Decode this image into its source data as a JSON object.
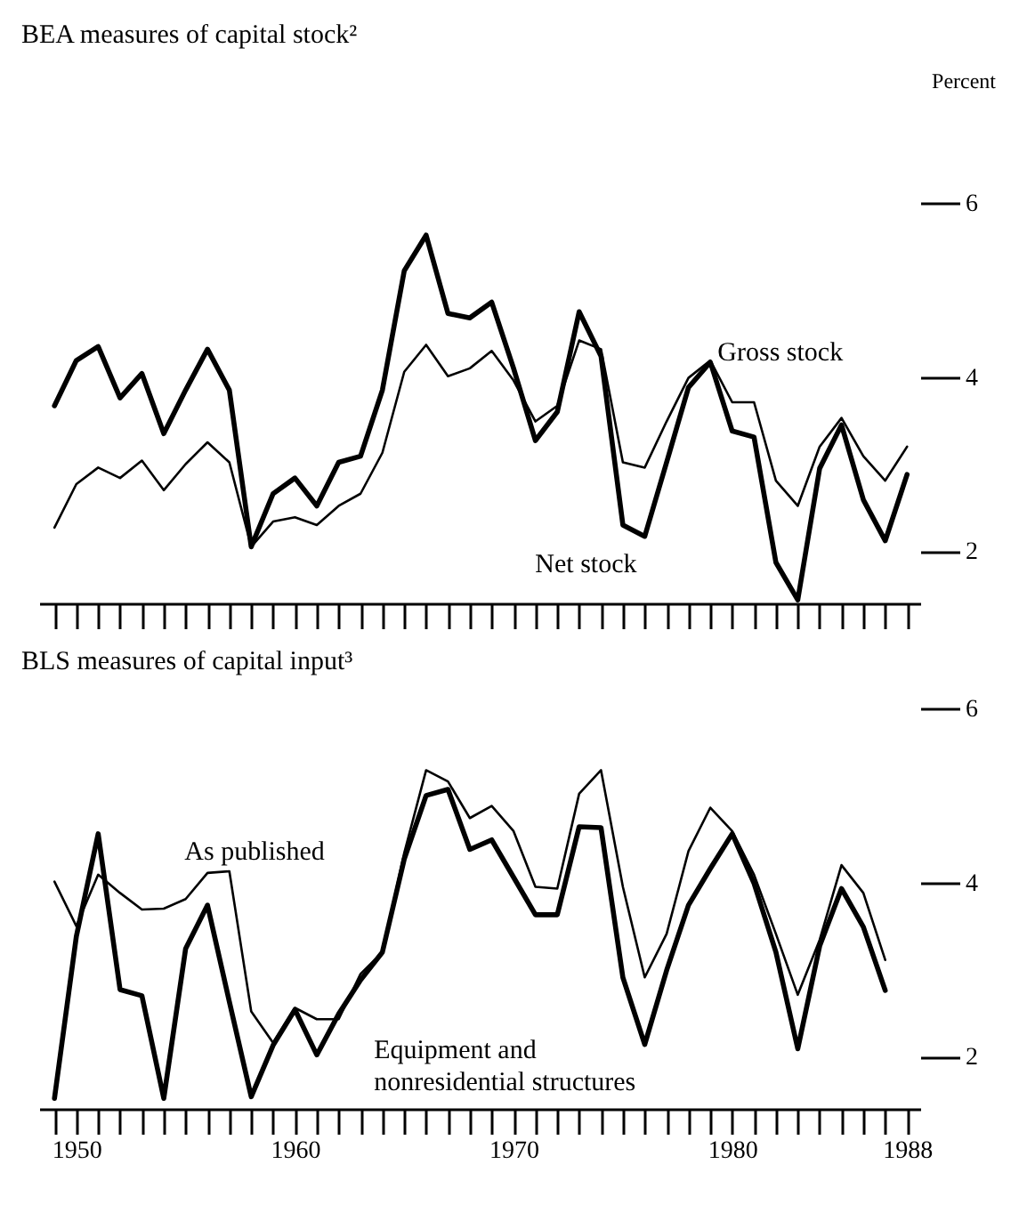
{
  "chart_data": [
    {
      "type": "line",
      "title": "BEA measures of capital stock²",
      "ylabel": "Percent",
      "x": [
        1949,
        1950,
        1951,
        1952,
        1953,
        1954,
        1955,
        1956,
        1957,
        1958,
        1959,
        1960,
        1961,
        1962,
        1963,
        1964,
        1965,
        1966,
        1967,
        1968,
        1969,
        1970,
        1971,
        1972,
        1973,
        1974,
        1975,
        1976,
        1977,
        1978,
        1979,
        1980,
        1981,
        1982,
        1983,
        1984,
        1985,
        1986,
        1987,
        1988
      ],
      "series": [
        {
          "name": "Gross stock",
          "color": "#000000",
          "values": [
            2.27,
            2.77,
            2.96,
            2.84,
            3.04,
            2.7,
            3.0,
            3.25,
            3.02,
            2.05,
            2.34,
            2.39,
            2.3,
            2.52,
            2.66,
            3.13,
            4.06,
            4.37,
            4.01,
            4.1,
            4.3,
            3.96,
            3.49,
            3.67,
            4.42,
            4.32,
            3.02,
            2.96,
            3.49,
            3.99,
            4.19,
            3.71,
            3.71,
            2.81,
            2.52,
            3.2,
            3.53,
            3.09,
            2.81,
            3.2
          ]
        },
        {
          "name": "Net stock",
          "color": "#000000",
          "values": [
            3.67,
            4.19,
            4.35,
            3.76,
            4.04,
            3.35,
            3.85,
            4.32,
            3.85,
            2.05,
            2.66,
            2.84,
            2.52,
            3.02,
            3.09,
            3.85,
            5.22,
            5.63,
            4.73,
            4.68,
            4.86,
            4.1,
            3.27,
            3.6,
            4.75,
            4.24,
            2.3,
            2.17,
            3.02,
            3.88,
            4.17,
            3.38,
            3.31,
            1.87,
            1.44,
            2.95,
            3.45,
            2.59,
            2.12,
            2.88
          ]
        }
      ],
      "xlim": [
        1948.3,
        1988.6
      ],
      "ylim": [
        1.4,
        6
      ],
      "yticks": [
        2,
        4,
        6
      ],
      "xticks": [
        {
          "value": 1949,
          "label": null
        },
        1950,
        {
          "value": 1951,
          "label": null
        },
        {
          "value": 1952,
          "label": null
        },
        {
          "value": 1953,
          "label": null
        },
        {
          "value": 1954,
          "label": null
        },
        {
          "value": 1955,
          "label": null
        },
        {
          "value": 1956,
          "label": null
        },
        {
          "value": 1957,
          "label": null
        },
        {
          "value": 1958,
          "label": null
        },
        {
          "value": 1959,
          "label": null
        },
        1960,
        {
          "value": 1961,
          "label": null
        },
        {
          "value": 1962,
          "label": null
        },
        {
          "value": 1963,
          "label": null
        },
        {
          "value": 1964,
          "label": null
        },
        {
          "value": 1965,
          "label": null
        },
        {
          "value": 1966,
          "label": null
        },
        {
          "value": 1967,
          "label": null
        },
        {
          "value": 1968,
          "label": null
        },
        {
          "value": 1969,
          "label": null
        },
        1970,
        {
          "value": 1971,
          "label": null
        },
        {
          "value": 1972,
          "label": null
        },
        {
          "value": 1973,
          "label": null
        },
        {
          "value": 1974,
          "label": null
        },
        {
          "value": 1975,
          "label": null
        },
        {
          "value": 1976,
          "label": null
        },
        {
          "value": 1977,
          "label": null
        },
        {
          "value": 1978,
          "label": null
        },
        {
          "value": 1979,
          "label": null
        },
        1980,
        {
          "value": 1981,
          "label": null
        },
        {
          "value": 1982,
          "label": null
        },
        {
          "value": 1983,
          "label": null
        },
        {
          "value": 1984,
          "label": null
        },
        {
          "value": 1985,
          "label": null
        },
        {
          "value": 1986,
          "label": null
        },
        {
          "value": 1987,
          "label": null
        },
        1988
      ],
      "tick_labels": "y",
      "grid": false,
      "legend": false
    },
    {
      "type": "line",
      "title": "BLS measures of capital input³",
      "x": [
        1949,
        1950,
        1951,
        1952,
        1953,
        1954,
        1955,
        1956,
        1957,
        1958,
        1959,
        1960,
        1961,
        1962,
        1963,
        1964,
        1965,
        1966,
        1967,
        1968,
        1969,
        1970,
        1971,
        1972,
        1973,
        1974,
        1975,
        1976,
        1977,
        1978,
        1979,
        1980,
        1981,
        1982,
        1983,
        1984,
        1985,
        1986,
        1987
      ],
      "series": [
        {
          "name": "As published",
          "color": "#000000",
          "values": [
            4.01,
            3.5,
            4.09,
            3.88,
            3.69,
            3.7,
            3.81,
            4.11,
            4.13,
            2.52,
            2.16,
            2.56,
            2.43,
            2.43,
            2.95,
            3.2,
            4.34,
            5.29,
            5.16,
            4.74,
            4.88,
            4.59,
            3.95,
            3.93,
            5.02,
            5.29,
            3.95,
            2.91,
            3.41,
            4.36,
            4.86,
            4.59,
            4.09,
            3.41,
            2.71,
            3.34,
            4.2,
            3.88,
            3.11
          ]
        },
        {
          "name": "Equipment and\nnonresidential structures",
          "color": "#000000",
          "values": [
            1.52,
            3.38,
            4.56,
            2.77,
            2.7,
            1.52,
            3.24,
            3.74,
            2.63,
            1.54,
            2.13,
            2.54,
            2.02,
            2.49,
            2.88,
            3.2,
            4.27,
            5.0,
            5.07,
            4.38,
            4.49,
            4.06,
            3.63,
            3.63,
            4.64,
            4.63,
            2.91,
            2.14,
            2.99,
            3.74,
            4.16,
            4.56,
            3.99,
            3.2,
            2.09,
            3.27,
            3.93,
            3.49,
            2.76
          ]
        }
      ],
      "xlim": [
        1948.3,
        1988.6
      ],
      "ylim": [
        1.4,
        6
      ],
      "yticks": [
        2,
        4,
        6
      ],
      "xticks": [
        {
          "value": 1949,
          "label": null
        },
        1950,
        {
          "value": 1951,
          "label": null
        },
        {
          "value": 1952,
          "label": null
        },
        {
          "value": 1953,
          "label": null
        },
        {
          "value": 1954,
          "label": null
        },
        {
          "value": 1955,
          "label": null
        },
        {
          "value": 1956,
          "label": null
        },
        {
          "value": 1957,
          "label": null
        },
        {
          "value": 1958,
          "label": null
        },
        {
          "value": 1959,
          "label": null
        },
        1960,
        {
          "value": 1961,
          "label": null
        },
        {
          "value": 1962,
          "label": null
        },
        {
          "value": 1963,
          "label": null
        },
        {
          "value": 1964,
          "label": null
        },
        {
          "value": 1965,
          "label": null
        },
        {
          "value": 1966,
          "label": null
        },
        {
          "value": 1967,
          "label": null
        },
        {
          "value": 1968,
          "label": null
        },
        {
          "value": 1969,
          "label": null
        },
        1970,
        {
          "value": 1971,
          "label": null
        },
        {
          "value": 1972,
          "label": null
        },
        {
          "value": 1973,
          "label": null
        },
        {
          "value": 1974,
          "label": null
        },
        {
          "value": 1975,
          "label": null
        },
        {
          "value": 1976,
          "label": null
        },
        {
          "value": 1977,
          "label": null
        },
        {
          "value": 1978,
          "label": null
        },
        {
          "value": 1979,
          "label": null
        },
        1980,
        {
          "value": 1981,
          "label": null
        },
        {
          "value": 1982,
          "label": null
        },
        {
          "value": 1983,
          "label": null
        },
        {
          "value": 1984,
          "label": null
        },
        {
          "value": 1985,
          "label": null
        },
        {
          "value": 1986,
          "label": null
        },
        {
          "value": 1987,
          "label": null
        },
        1988
      ],
      "grid": false,
      "legend": false
    }
  ]
}
